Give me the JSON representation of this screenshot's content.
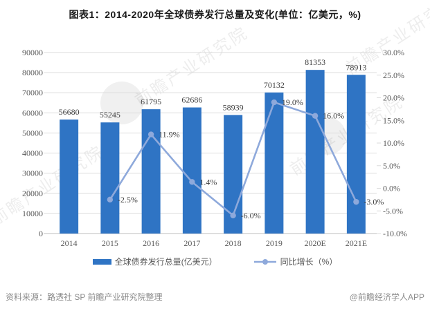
{
  "title": "图表1：2014-2020年全球债券发行总量及变化(单位：亿美元，%)",
  "watermark": {
    "text": "前瞻产业研究院"
  },
  "footer": {
    "source": "资料来源：路透社 SP 前瞻产业研究院整理",
    "brand": "@前瞻经济学人APP"
  },
  "colors": {
    "bar": "#2F74C4",
    "line": "#8EA9DB",
    "grid": "#DBDBDB",
    "axis_line": "#BDBDBD",
    "tick_text": "#595959",
    "data_label": "#3F3F3F",
    "title_text": "#1A1A1A",
    "footer_text": "#8C8C8C"
  },
  "chart_data": {
    "type": "combo",
    "title": "图表1：2014-2020年全球债券发行总量及变化(单位：亿美元，%)",
    "categories": [
      "2014",
      "2015",
      "2016",
      "2017",
      "2018",
      "2019",
      "2020E",
      "2021E"
    ],
    "series": [
      {
        "name": "全球债券发行总量(亿美元）",
        "type": "bar",
        "axis": "left",
        "color": "#2F74C4",
        "values": [
          56680,
          55245,
          61795,
          62686,
          58939,
          70132,
          81353,
          78913
        ],
        "labels": [
          "56680",
          "55245",
          "61795",
          "62686",
          "58939",
          "70132",
          "81353",
          "78913"
        ]
      },
      {
        "name": "同比增长（%）",
        "type": "line",
        "axis": "right",
        "color": "#8EA9DB",
        "values": [
          null,
          -2.5,
          11.9,
          1.4,
          -6.0,
          19.0,
          16.0,
          -3.0
        ],
        "labels": [
          "",
          "-2.5%",
          "11.9%",
          "1.4%",
          "-6.0%",
          "19.0%",
          "16.0%",
          "-3.0%"
        ]
      }
    ],
    "left_axis": {
      "min": 0,
      "max": 90000,
      "step": 10000,
      "ticks": [
        "0",
        "10000",
        "20000",
        "30000",
        "40000",
        "50000",
        "60000",
        "70000",
        "80000",
        "90000"
      ]
    },
    "right_axis": {
      "min": -10,
      "max": 30,
      "step": 5,
      "ticks": [
        "-10.0%",
        "-5.0%",
        "0.0%",
        "5.0%",
        "10.0%",
        "15.0%",
        "20.0%",
        "25.0%",
        "30.0%"
      ]
    },
    "grid": true,
    "legend_position": "bottom"
  }
}
